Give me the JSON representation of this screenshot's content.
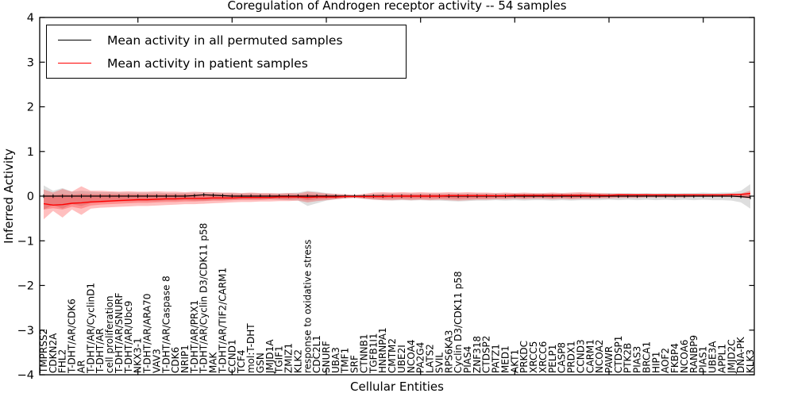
{
  "axes": {
    "yticks": [
      {
        "value": 4,
        "label": "4"
      },
      {
        "value": 3,
        "label": "3"
      },
      {
        "value": 2,
        "label": "2"
      },
      {
        "value": 1,
        "label": "1"
      },
      {
        "value": 0,
        "label": "0"
      },
      {
        "value": -1,
        "label": "−1"
      },
      {
        "value": -2,
        "label": "−2"
      },
      {
        "value": -3,
        "label": "−3"
      },
      {
        "value": -4,
        "label": "−4"
      }
    ],
    "xtick_indices": [
      10,
      20,
      30,
      40,
      50,
      60,
      70
    ]
  },
  "chart_data": {
    "type": "line",
    "title": "Coregulation of Androgen receptor activity -- 54 samples",
    "xlabel": "Cellular Entities",
    "ylabel": "Inferred Activity",
    "ylim": [
      -4,
      4
    ],
    "legend_position": "upper left",
    "categories": [
      "TMPRSS2",
      "CDKN2A",
      "FHL2",
      "T-DHT/AR/CDK6",
      "AR",
      "T-DHT/AR/CyclinD1",
      "T-DHT/AR",
      "cell proliferation",
      "T-DHT/AR/SNURF",
      "T-DHT/AR/Ubc9",
      "NKX3-1",
      "T-DHT/AR/ARA70",
      "VAV3",
      "T-DHT/AR/Caspase 8",
      "CDK6",
      "NRIP1",
      "T-DHT/AR/PRX1",
      "T-DHT/AR/Cyclin D3/CDK11 p58",
      "MAK",
      "T-DHT/AR/TIF2/CARM1",
      "CCND1",
      "TCF4",
      "mol:T-DHT",
      "GSN",
      "JMJD1A",
      "TGIF1",
      "ZMIZ1",
      "KLK2",
      "response to oxidative stress",
      "CDC2L1",
      "SNURF",
      "UBA3",
      "TMF1",
      "SRF",
      "CTNNB1",
      "TGFB1I1",
      "HNRNPA1",
      "CMTM2",
      "UBE2I",
      "NCOA4",
      "PA2G4",
      "LATS2",
      "SVIL",
      "RPS6KA3",
      "Cyclin D3/CDK11 p58",
      "PIAS4",
      "ZNF318",
      "CTDSP2",
      "PATZ1",
      "MED1",
      "AKT1",
      "PRKDC",
      "XRCC5",
      "XRCC6",
      "PELP1",
      "CASP8",
      "PRDX1",
      "CCND3",
      "CARM1",
      "NCOA2",
      "PAWR",
      "CTDSP1",
      "PTK2B",
      "PIAS3",
      "BRCA1",
      "HIP1",
      "AOF2",
      "FKBP4",
      "NCOA6",
      "RANBP9",
      "PIAS1",
      "UBE3A",
      "APPL1",
      "JMJD2C",
      "DNA-PK",
      "KLK3"
    ],
    "series": [
      {
        "name": "Mean activity in all permuted samples",
        "color": "#000000",
        "values": [
          0,
          0,
          0,
          0,
          0,
          0,
          0,
          0,
          0,
          0,
          0,
          0,
          0,
          0,
          0,
          0,
          0.01,
          0.03,
          0.02,
          0.01,
          0,
          0,
          0,
          0,
          0,
          0,
          0,
          0,
          0,
          0,
          0,
          0,
          0,
          0,
          0,
          0,
          0,
          0,
          0,
          0,
          0,
          0,
          0,
          0,
          0,
          0,
          0,
          0,
          0,
          0,
          0,
          0,
          0,
          0,
          0,
          0,
          0,
          0,
          0,
          0,
          0,
          0,
          0,
          0,
          0,
          0,
          0,
          0,
          0,
          0,
          0,
          0,
          0,
          0,
          -0.01,
          -0.03
        ]
      },
      {
        "name": "Mean activity in patient samples",
        "color": "#ff0000",
        "values": [
          -0.17,
          -0.2,
          -0.19,
          -0.16,
          -0.15,
          -0.13,
          -0.12,
          -0.11,
          -0.1,
          -0.09,
          -0.08,
          -0.08,
          -0.07,
          -0.06,
          -0.06,
          -0.05,
          -0.05,
          -0.05,
          -0.04,
          -0.04,
          -0.04,
          -0.03,
          -0.03,
          -0.03,
          -0.03,
          -0.02,
          -0.02,
          -0.02,
          -0.03,
          -0.02,
          -0.02,
          -0.02,
          -0.01,
          -0.01,
          -0.01,
          -0.01,
          -0.01,
          0,
          0,
          0,
          0,
          0,
          0,
          0.01,
          0.01,
          0.01,
          0.01,
          0.01,
          0.01,
          0.01,
          0.02,
          0.02,
          0.02,
          0.02,
          0.02,
          0.02,
          0.02,
          0.02,
          0.02,
          0.02,
          0.02,
          0.03,
          0.03,
          0.03,
          0.03,
          0.03,
          0.03,
          0.03,
          0.03,
          0.03,
          0.03,
          0.03,
          0.03,
          0.04,
          0.04,
          0.06
        ]
      }
    ],
    "bands": [
      {
        "name": "permuted-range",
        "color": "#000000",
        "opacity": 0.13,
        "upper": [
          0.24,
          0.12,
          0.18,
          0.1,
          0.12,
          0.1,
          0.09,
          0.09,
          0.08,
          0.08,
          0.08,
          0.08,
          0.08,
          0.07,
          0.07,
          0.07,
          0.08,
          0.09,
          0.08,
          0.07,
          0.07,
          0.06,
          0.07,
          0.06,
          0.06,
          0.06,
          0.07,
          0.08,
          0.12,
          0.1,
          0.07,
          0.05,
          0.04,
          0.03,
          0.04,
          0.05,
          0.06,
          0.06,
          0.06,
          0.06,
          0.06,
          0.06,
          0.06,
          0.06,
          0.06,
          0.06,
          0.06,
          0.06,
          0.06,
          0.06,
          0.06,
          0.06,
          0.06,
          0.06,
          0.06,
          0.06,
          0.06,
          0.07,
          0.06,
          0.06,
          0.07,
          0.06,
          0.07,
          0.06,
          0.07,
          0.06,
          0.07,
          0.06,
          0.07,
          0.07,
          0.08,
          0.07,
          0.08,
          0.08,
          0.12,
          0.27
        ],
        "lower": [
          -0.3,
          -0.2,
          -0.28,
          -0.18,
          -0.22,
          -0.16,
          -0.14,
          -0.13,
          -0.12,
          -0.12,
          -0.11,
          -0.11,
          -0.11,
          -0.1,
          -0.1,
          -0.09,
          -0.1,
          -0.1,
          -0.09,
          -0.09,
          -0.08,
          -0.08,
          -0.08,
          -0.08,
          -0.07,
          -0.08,
          -0.09,
          -0.1,
          -0.22,
          -0.16,
          -0.1,
          -0.07,
          -0.05,
          -0.04,
          -0.06,
          -0.08,
          -0.09,
          -0.1,
          -0.09,
          -0.1,
          -0.09,
          -0.1,
          -0.1,
          -0.11,
          -0.12,
          -0.11,
          -0.1,
          -0.1,
          -0.09,
          -0.1,
          -0.09,
          -0.1,
          -0.09,
          -0.09,
          -0.1,
          -0.09,
          -0.1,
          -0.09,
          -0.09,
          -0.09,
          -0.08,
          -0.09,
          -0.08,
          -0.09,
          -0.08,
          -0.09,
          -0.08,
          -0.09,
          -0.08,
          -0.09,
          -0.08,
          -0.09,
          -0.09,
          -0.1,
          -0.14,
          -0.28
        ]
      },
      {
        "name": "patient-range-outer",
        "color": "#ff0000",
        "opacity": 0.25,
        "upper": [
          0.15,
          0.08,
          0.16,
          0.1,
          0.22,
          0.12,
          0.12,
          0.11,
          0.1,
          0.11,
          0.1,
          0.1,
          0.11,
          0.1,
          0.1,
          0.09,
          0.1,
          0.09,
          0.09,
          0.08,
          0.08,
          0.07,
          0.08,
          0.07,
          0.07,
          0.06,
          0.07,
          0.06,
          0.1,
          0.08,
          0.06,
          0.05,
          0.04,
          0.03,
          0.05,
          0.08,
          0.09,
          0.08,
          0.09,
          0.08,
          0.09,
          0.08,
          0.08,
          0.09,
          0.08,
          0.09,
          0.08,
          0.08,
          0.07,
          0.08,
          0.07,
          0.08,
          0.07,
          0.07,
          0.08,
          0.07,
          0.08,
          0.09,
          0.08,
          0.07,
          0.06,
          0.06,
          0.05,
          0.05,
          0.05,
          0.04,
          0.04,
          0.04,
          0.04,
          0.04,
          0.04,
          0.04,
          0.04,
          0.04,
          0.06,
          0.12
        ],
        "lower": [
          -0.52,
          -0.33,
          -0.48,
          -0.3,
          -0.42,
          -0.28,
          -0.26,
          -0.25,
          -0.24,
          -0.23,
          -0.22,
          -0.22,
          -0.21,
          -0.2,
          -0.19,
          -0.18,
          -0.18,
          -0.17,
          -0.16,
          -0.15,
          -0.14,
          -0.13,
          -0.13,
          -0.12,
          -0.12,
          -0.11,
          -0.11,
          -0.1,
          -0.14,
          -0.11,
          -0.09,
          -0.07,
          -0.05,
          -0.04,
          -0.06,
          -0.08,
          -0.09,
          -0.09,
          -0.08,
          -0.09,
          -0.08,
          -0.09,
          -0.08,
          -0.09,
          -0.1,
          -0.09,
          -0.08,
          -0.08,
          -0.07,
          -0.07,
          -0.06,
          -0.07,
          -0.06,
          -0.06,
          -0.07,
          -0.06,
          -0.07,
          -0.06,
          -0.06,
          -0.05,
          -0.05,
          -0.04,
          -0.04,
          -0.04,
          -0.03,
          -0.03,
          -0.03,
          -0.03,
          -0.03,
          -0.02,
          -0.02,
          -0.02,
          -0.02,
          -0.02,
          -0.03,
          -0.06
        ]
      },
      {
        "name": "patient-range-inner",
        "color": "#ff0000",
        "opacity": 0.25,
        "upper": [
          0.03,
          0.02,
          0.04,
          0.03,
          0.05,
          0.04,
          0.04,
          0.04,
          0.04,
          0.04,
          0.04,
          0.04,
          0.04,
          0.04,
          0.04,
          0.04,
          0.04,
          0.04,
          0.04,
          0.03,
          0.03,
          0.03,
          0.03,
          0.03,
          0.03,
          0.03,
          0.03,
          0.03,
          0.04,
          0.03,
          0.03,
          0.02,
          0.02,
          0.01,
          0.02,
          0.03,
          0.04,
          0.04,
          0.04,
          0.04,
          0.04,
          0.04,
          0.04,
          0.04,
          0.04,
          0.04,
          0.04,
          0.04,
          0.03,
          0.04,
          0.04,
          0.04,
          0.04,
          0.04,
          0.04,
          0.04,
          0.04,
          0.04,
          0.04,
          0.04,
          0.03,
          0.04,
          0.04,
          0.04,
          0.04,
          0.03,
          0.04,
          0.03,
          0.04,
          0.03,
          0.03,
          0.03,
          0.03,
          0.03,
          0.04,
          0.08
        ],
        "lower": [
          -0.3,
          -0.27,
          -0.3,
          -0.24,
          -0.28,
          -0.21,
          -0.19,
          -0.18,
          -0.17,
          -0.16,
          -0.15,
          -0.15,
          -0.14,
          -0.13,
          -0.13,
          -0.12,
          -0.12,
          -0.11,
          -0.1,
          -0.1,
          -0.09,
          -0.08,
          -0.08,
          -0.08,
          -0.07,
          -0.07,
          -0.07,
          -0.06,
          -0.09,
          -0.07,
          -0.06,
          -0.05,
          -0.03,
          -0.02,
          -0.04,
          -0.05,
          -0.06,
          -0.05,
          -0.05,
          -0.05,
          -0.05,
          -0.05,
          -0.05,
          -0.05,
          -0.06,
          -0.05,
          -0.05,
          -0.05,
          -0.04,
          -0.04,
          -0.03,
          -0.04,
          -0.03,
          -0.03,
          -0.04,
          -0.03,
          -0.04,
          -0.03,
          -0.03,
          -0.03,
          -0.02,
          -0.02,
          -0.02,
          -0.02,
          -0.01,
          -0.01,
          -0.01,
          -0.01,
          -0.01,
          -0.01,
          0,
          0,
          0,
          0,
          -0.01,
          -0.02
        ]
      }
    ]
  }
}
